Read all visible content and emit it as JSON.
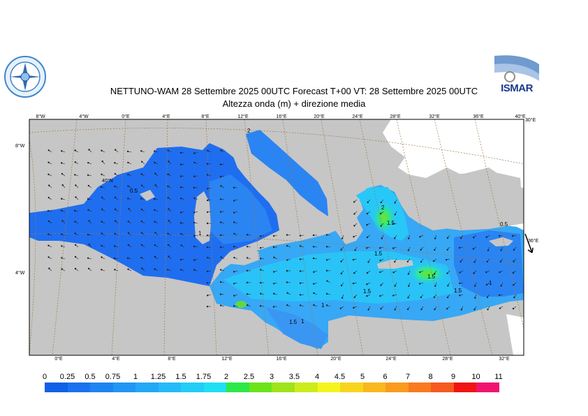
{
  "header": {
    "title_line1": "NETTUNO-WAM  28 Settembre 2025 00UTC Forecast T+00 VT: 28 Settembre 2025 00UTC",
    "title_line2": "Altezza onda (m) + direzione media"
  },
  "logos": {
    "right_text": "ISMAR"
  },
  "map": {
    "top_lon_labels": [
      "8°W",
      "4°W",
      "0°E",
      "4°E",
      "8°E",
      "12°E",
      "16°E",
      "20°E",
      "24°E",
      "28°E",
      "32°E",
      "36°E",
      "40°E"
    ],
    "bottom_lon_labels": [
      "0°E",
      "4°E",
      "8°E",
      "12°E",
      "16°E",
      "20°E",
      "24°E",
      "28°E",
      "32°E"
    ],
    "lat_labels_left": [
      "8°W",
      "40°N",
      "4°W"
    ],
    "lat_labels_right": [
      "30°E",
      "36°E"
    ],
    "contour_labels": [
      "2",
      "0.5",
      "1",
      "1.5",
      "1.5",
      "1",
      "1.5",
      "1.5",
      "1.5",
      "0.5",
      "1",
      "1.5",
      "1",
      "2"
    ],
    "colors": {
      "land": "#c6c6c6",
      "alt_land": "#ffffff",
      "sea_low": "#1f6ef0",
      "sea_mid": "#3aa3f5",
      "sea_high": "#27c8f8",
      "peak": "#7be01d"
    }
  },
  "colorbar": {
    "labels": [
      "0",
      "0.25",
      "0.5",
      "0.75",
      "1",
      "1.25",
      "1.5",
      "1.75",
      "2",
      "2.5",
      "3",
      "3.5",
      "4",
      "4.5",
      "5",
      "6",
      "7",
      "8",
      "9",
      "10",
      "11"
    ],
    "colors": [
      "#1060e8",
      "#1a72ee",
      "#1e84f2",
      "#2196f5",
      "#23a8f7",
      "#25baf8",
      "#22cdf6",
      "#1fdff2",
      "#2ee84a",
      "#6be41a",
      "#9ee41a",
      "#cdec1c",
      "#f5f51e",
      "#f7d51f",
      "#f9b81f",
      "#f99b1f",
      "#f97a1f",
      "#f55a1f",
      "#f01414",
      "#f0146e",
      "#f014c8"
    ]
  }
}
